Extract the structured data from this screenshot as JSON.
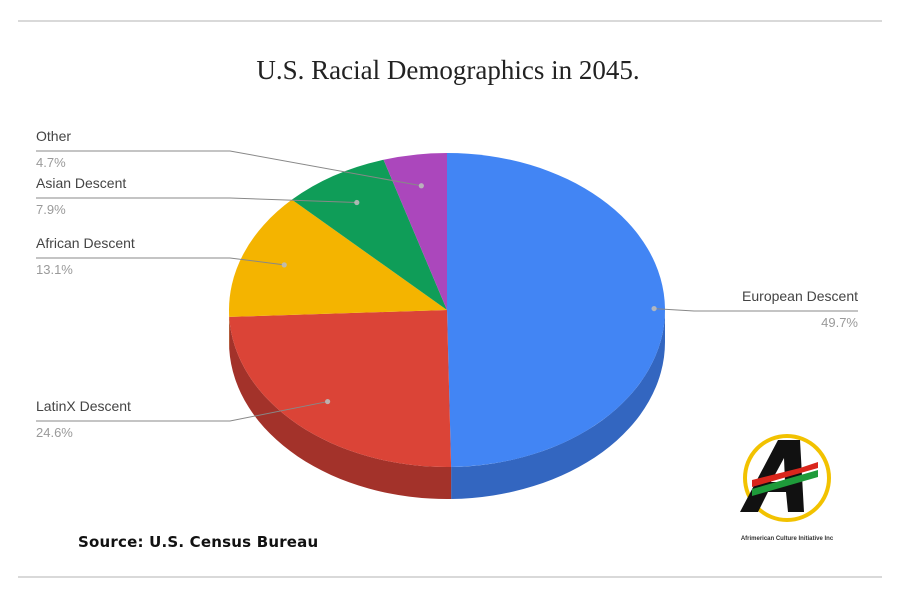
{
  "chart_data": {
    "type": "pie",
    "title": "U.S. Racial Demographics in 2045.",
    "slices": [
      {
        "label": "European Descent",
        "value": 49.7,
        "pct_label": "49.7%",
        "color": "#4285f4",
        "side_color": "#3366c0"
      },
      {
        "label": "LatinX Descent",
        "value": 24.6,
        "pct_label": "24.6%",
        "color": "#db4437",
        "side_color": "#a3322a"
      },
      {
        "label": "African  Descent",
        "value": 13.1,
        "pct_label": "13.1%",
        "color": "#f4b400",
        "side_color": "#b88600"
      },
      {
        "label": "Asian Descent",
        "value": 7.9,
        "pct_label": "7.9%",
        "color": "#0f9d58",
        "side_color": "#0b7342"
      },
      {
        "label": "Other",
        "value": 4.7,
        "pct_label": "4.7%",
        "color": "#ab47bc",
        "side_color": "#7d338a"
      }
    ],
    "legend": "none",
    "three_d": true
  },
  "source": "Source: U.S. Census Bureau",
  "logo": {
    "letter": "A",
    "caption": "Afrimerican Culture Initiative Inc",
    "ring_color": "#f2c200",
    "stripe_colors": [
      "#d9261c",
      "#111111",
      "#1e9b3a"
    ]
  }
}
